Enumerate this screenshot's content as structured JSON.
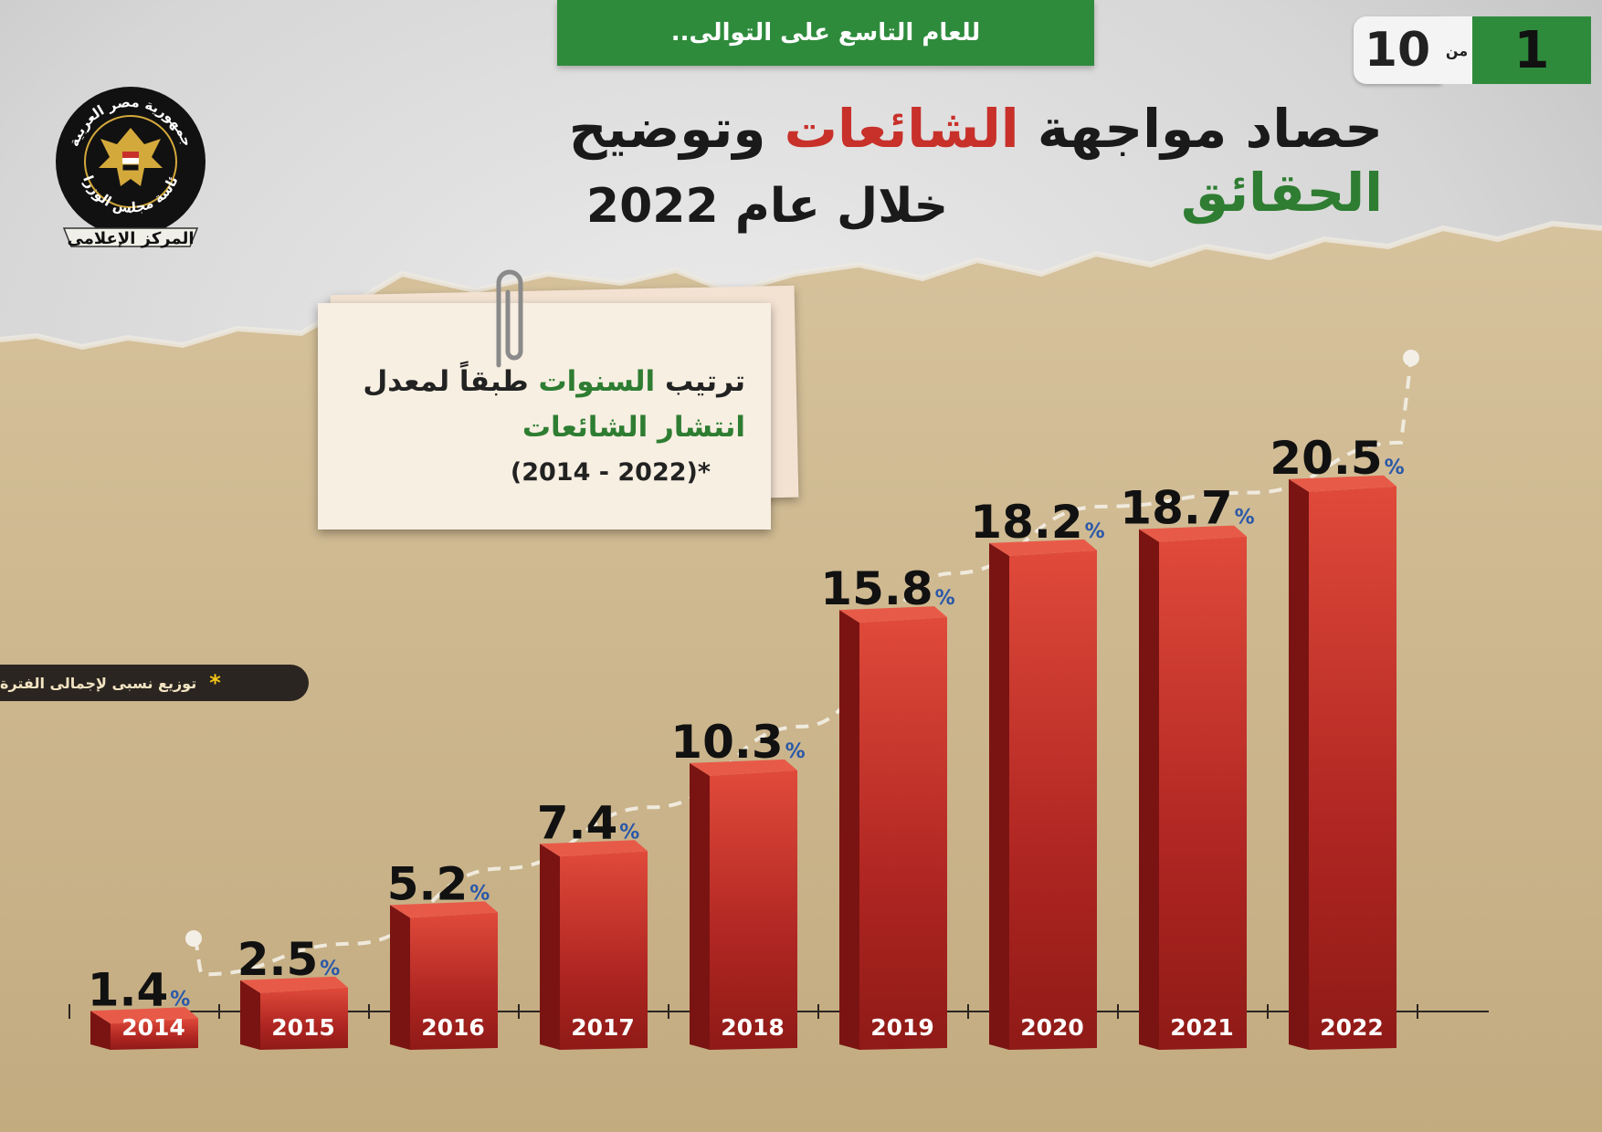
{
  "header": {
    "banner": "للعام التاسع على التوالى..",
    "page_current": "1",
    "page_of": "من",
    "page_total": "10"
  },
  "logo": {
    "arc_top": "جمهورية مصر العربية",
    "arc_bottom": "رئاسة مجلس الوزراء",
    "ribbon": "المركز الإعلامى"
  },
  "title": {
    "part1": "حصاد مواجهة ",
    "part2_red": "الشائعات",
    "part3": " وتوضيح ",
    "part4_green": "الحقائق",
    "subtitle": "خلال عام 2022"
  },
  "note": {
    "line1_part1": "ترتيب ",
    "line1_part2": "السنوات",
    "line1_part3": " طبقاً لمعدل",
    "line2": "انتشار الشائعات",
    "line3": "(2014 - 2022)*"
  },
  "footnote": {
    "star": "*",
    "text": "توزيع نسبى لإجمالى الفترة"
  },
  "colors": {
    "green": "#2e8b3c",
    "bar_red": "#c8302a",
    "bar_dark": "#8f1a17"
  },
  "chart_data": {
    "type": "bar",
    "categories": [
      "2014",
      "2015",
      "2016",
      "2017",
      "2018",
      "2019",
      "2020",
      "2021",
      "2022"
    ],
    "values": [
      1.4,
      2.5,
      5.2,
      7.4,
      10.3,
      15.8,
      18.2,
      18.7,
      20.5
    ],
    "value_suffix": "%",
    "trend_line": "dashed",
    "grid": false
  }
}
